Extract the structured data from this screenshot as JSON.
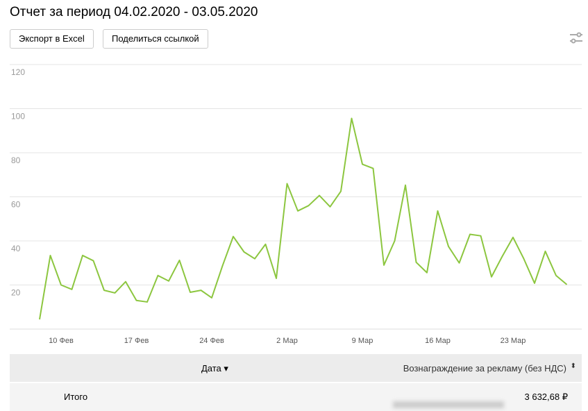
{
  "header": {
    "title": "Отчет за период 04.02.2020 - 03.05.2020",
    "buttons": [
      "Экспорт в Excel",
      "Поделиться ссылкой"
    ]
  },
  "chart_data": {
    "type": "line",
    "color": "#8cc63f",
    "grid": true,
    "categories": [
      null,
      null,
      "10 Фев",
      null,
      null,
      null,
      null,
      null,
      null,
      "17 Фев",
      null,
      null,
      null,
      null,
      null,
      null,
      "24 Фев",
      null,
      null,
      null,
      null,
      null,
      null,
      "2 Мар",
      null,
      null,
      null,
      null,
      null,
      null,
      "9 Мар",
      null,
      null,
      null,
      null,
      null,
      null,
      "16 Мар",
      null,
      null,
      null,
      null,
      null,
      null,
      "23 Мар",
      null,
      null,
      null,
      null,
      null
    ],
    "values": [
      4.4,
      33.4,
      20,
      18,
      33.4,
      31,
      17.6,
      16.4,
      21.5,
      13,
      12.3,
      24.3,
      21.8,
      31.2,
      16.7,
      17.6,
      14.2,
      28.7,
      42,
      35,
      31.9,
      38.5,
      23,
      66,
      53.6,
      56,
      60.6,
      55.5,
      62.5,
      95.6,
      74.8,
      72.9,
      29,
      40,
      65.3,
      30.3,
      25.6,
      53.6,
      37.5,
      30,
      43,
      42.3,
      23.7,
      33,
      41.6,
      31.9,
      20.8,
      35.3,
      24.3,
      20.2
    ],
    "ylim": [
      0,
      120
    ],
    "yticks": [
      20,
      40,
      60,
      80,
      100,
      120
    ]
  },
  "table": {
    "columns": [
      "Дата",
      "Вознаграждение за рекламу (без НДС)"
    ],
    "rows": [
      [
        "Итого",
        "3 632,68 ₽"
      ]
    ]
  }
}
